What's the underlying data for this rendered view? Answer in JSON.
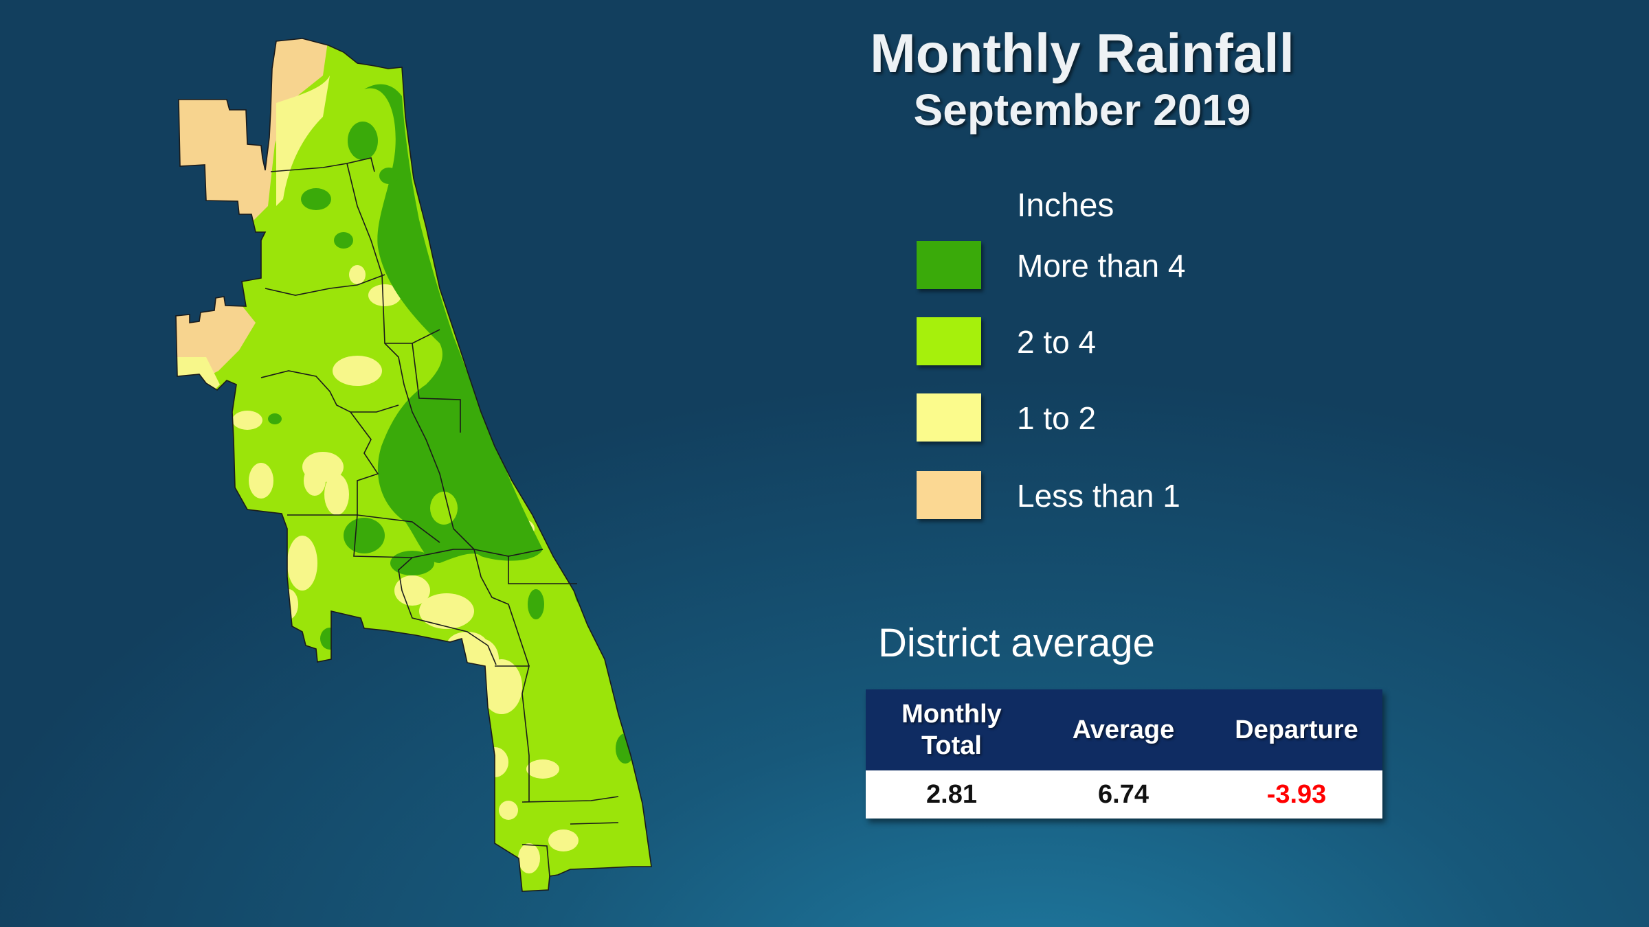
{
  "title": "Monthly Rainfall",
  "subtitle": "September 2019",
  "legend": {
    "title": "Inches",
    "items": [
      {
        "label": "More than 4",
        "color": "#3aaa0a"
      },
      {
        "label": "2 to 4",
        "color": "#a6f00c"
      },
      {
        "label": "1 to 2",
        "color": "#fbfb8c"
      },
      {
        "label": "Less than 1",
        "color": "#fbd893"
      }
    ]
  },
  "district": {
    "heading": "District average",
    "headers": [
      "Monthly Total",
      "Average",
      "Departure"
    ],
    "values": [
      "2.81",
      "6.74",
      "-3.93"
    ],
    "departure_color": "#ff0000"
  },
  "map_colors": {
    "more_than_4": "#3aaa0a",
    "two_to_4": "#9be40a",
    "one_to_2": "#f7f78a",
    "less_than_1": "#f7d48f",
    "border": "#1a1a1a"
  }
}
